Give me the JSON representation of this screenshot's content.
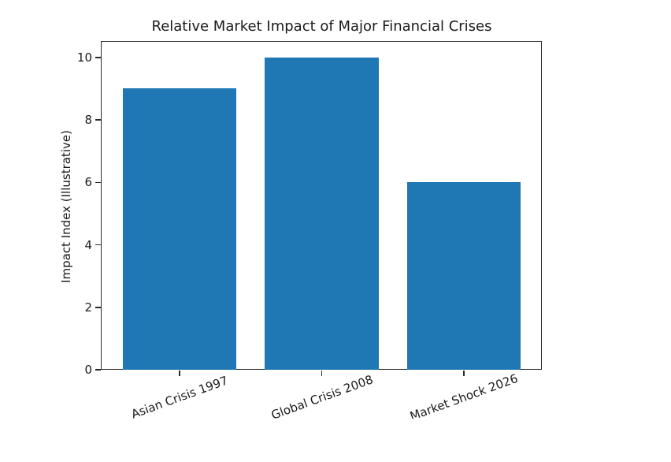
{
  "chart_data": {
    "type": "bar",
    "title": "Relative Market Impact of Major Financial Crises",
    "xlabel": "",
    "ylabel": "Impact Index (Illustrative)",
    "categories": [
      "Asian Crisis 1997",
      "Global Crisis 2008",
      "Market Shock 2026"
    ],
    "values": [
      9,
      10,
      6
    ],
    "yticks": [
      0,
      2,
      4,
      6,
      8,
      10
    ],
    "ytick_labels": [
      "0",
      "2",
      "4",
      "6",
      "8",
      "10"
    ],
    "ylim": [
      0,
      10.5
    ],
    "bar_color": "#1f77b4",
    "grid": false,
    "legend_position": "none",
    "x_tick_rotation_deg": 20,
    "x_labels_clipped_at_bottom": true
  }
}
